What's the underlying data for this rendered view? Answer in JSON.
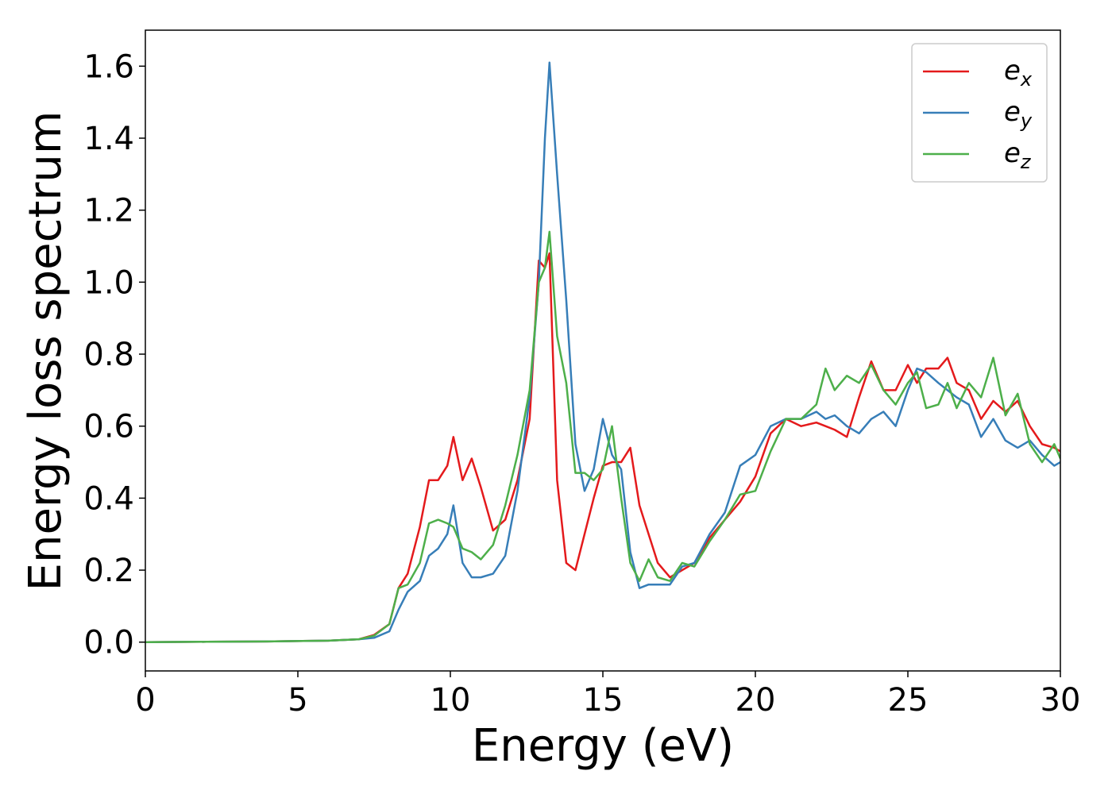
{
  "chart_data": {
    "type": "line",
    "xlabel": "Energy (eV)",
    "ylabel": "Energy loss spectrum",
    "x": [
      0,
      2,
      4,
      6,
      7,
      7.5,
      8,
      8.3,
      8.6,
      9,
      9.3,
      9.6,
      9.9,
      10.1,
      10.4,
      10.7,
      11,
      11.4,
      11.8,
      12.2,
      12.6,
      12.9,
      13.1,
      13.25,
      13.5,
      13.8,
      14.1,
      14.4,
      14.7,
      15,
      15.3,
      15.6,
      15.9,
      16.2,
      16.5,
      16.8,
      17.2,
      17.6,
      18,
      18.5,
      19,
      19.5,
      20,
      20.5,
      21,
      21.5,
      22,
      22.3,
      22.6,
      23,
      23.4,
      23.8,
      24.2,
      24.6,
      25,
      25.3,
      25.6,
      26,
      26.3,
      26.6,
      27,
      27.4,
      27.8,
      28.2,
      28.6,
      29,
      29.4,
      29.8,
      30
    ],
    "series": [
      {
        "name": "ex",
        "color": "#e41a1c",
        "values": [
          0,
          0.001,
          0.002,
          0.004,
          0.008,
          0.02,
          0.05,
          0.15,
          0.19,
          0.32,
          0.45,
          0.45,
          0.49,
          0.57,
          0.45,
          0.51,
          0.43,
          0.31,
          0.34,
          0.45,
          0.62,
          1.06,
          1.04,
          1.08,
          0.45,
          0.22,
          0.2,
          0.3,
          0.4,
          0.49,
          0.5,
          0.5,
          0.54,
          0.38,
          0.3,
          0.22,
          0.18,
          0.2,
          0.22,
          0.29,
          0.34,
          0.39,
          0.46,
          0.58,
          0.62,
          0.6,
          0.61,
          0.6,
          0.59,
          0.57,
          0.68,
          0.78,
          0.7,
          0.7,
          0.77,
          0.72,
          0.76,
          0.76,
          0.79,
          0.72,
          0.7,
          0.62,
          0.67,
          0.64,
          0.67,
          0.6,
          0.55,
          0.54,
          0.53
        ]
      },
      {
        "name": "ey",
        "color": "#377eb8",
        "values": [
          0,
          0.001,
          0.002,
          0.004,
          0.008,
          0.012,
          0.03,
          0.09,
          0.14,
          0.17,
          0.24,
          0.26,
          0.3,
          0.38,
          0.22,
          0.18,
          0.18,
          0.19,
          0.24,
          0.42,
          0.68,
          1.0,
          1.4,
          1.61,
          1.3,
          0.95,
          0.55,
          0.42,
          0.48,
          0.62,
          0.52,
          0.48,
          0.25,
          0.15,
          0.16,
          0.16,
          0.16,
          0.21,
          0.22,
          0.3,
          0.36,
          0.49,
          0.52,
          0.6,
          0.62,
          0.62,
          0.64,
          0.62,
          0.63,
          0.6,
          0.58,
          0.62,
          0.64,
          0.6,
          0.7,
          0.76,
          0.75,
          0.72,
          0.7,
          0.68,
          0.66,
          0.57,
          0.62,
          0.56,
          0.54,
          0.56,
          0.52,
          0.49,
          0.5
        ]
      },
      {
        "name": "ez",
        "color": "#4daf4a",
        "values": [
          0,
          0.001,
          0.002,
          0.004,
          0.008,
          0.018,
          0.05,
          0.15,
          0.16,
          0.22,
          0.33,
          0.34,
          0.33,
          0.32,
          0.26,
          0.25,
          0.23,
          0.27,
          0.38,
          0.52,
          0.7,
          1.0,
          1.04,
          1.14,
          0.85,
          0.72,
          0.47,
          0.47,
          0.45,
          0.48,
          0.6,
          0.4,
          0.22,
          0.17,
          0.23,
          0.18,
          0.17,
          0.22,
          0.21,
          0.28,
          0.34,
          0.41,
          0.42,
          0.53,
          0.62,
          0.62,
          0.66,
          0.76,
          0.7,
          0.74,
          0.72,
          0.77,
          0.7,
          0.66,
          0.72,
          0.75,
          0.65,
          0.66,
          0.72,
          0.65,
          0.72,
          0.68,
          0.79,
          0.63,
          0.69,
          0.55,
          0.5,
          0.55,
          0.51
        ]
      }
    ],
    "xlim": [
      0,
      30
    ],
    "xticks": [
      0,
      5,
      10,
      15,
      20,
      25,
      30
    ],
    "ylim": [
      -0.08,
      1.7
    ],
    "yticks": [
      {
        "value": 0,
        "label": "0.0"
      },
      0.2,
      0.4,
      0.6,
      0.8,
      {
        "value": 1,
        "label": "1.0"
      },
      1.2,
      1.4,
      1.6
    ],
    "grid": false,
    "legend": "upper right"
  }
}
